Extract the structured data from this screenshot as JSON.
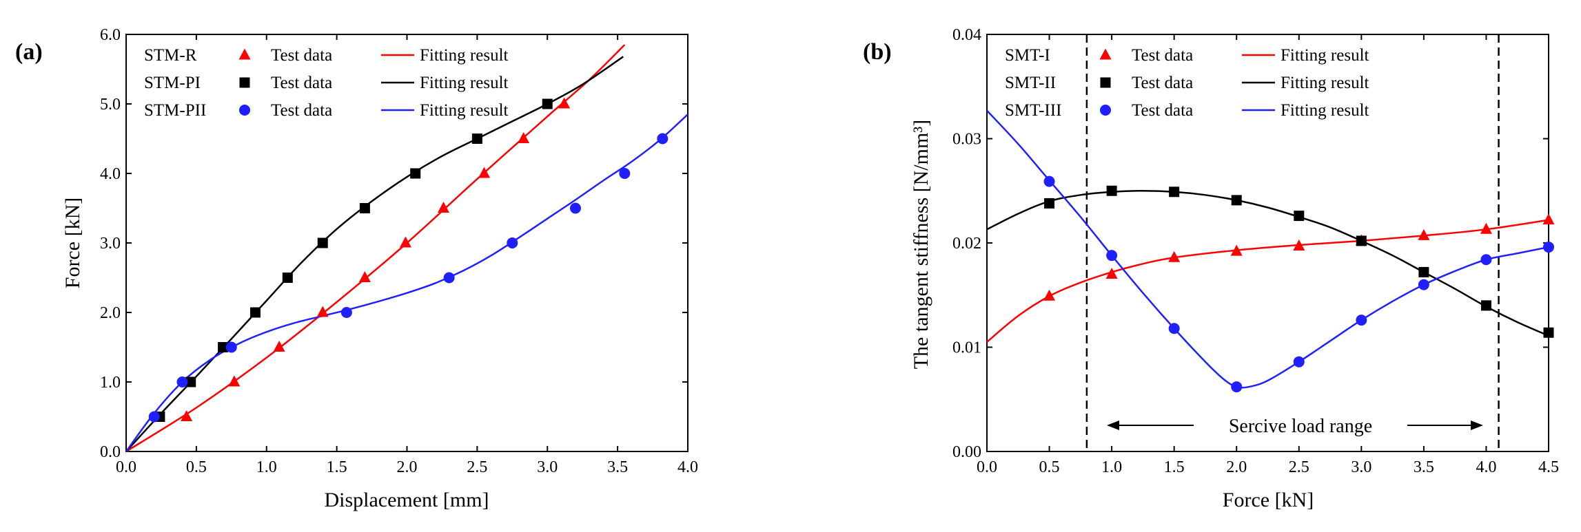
{
  "panels": [
    {
      "panel_label": "(a)",
      "xlabel": "Displacement [mm]",
      "ylabel": "Force [kN]",
      "xlim": [
        0,
        4.0
      ],
      "ylim": [
        0,
        6.0
      ],
      "xticks": [
        0.0,
        0.5,
        1.0,
        1.5,
        2.0,
        2.5,
        3.0,
        3.5,
        4.0
      ],
      "yticks": [
        0.0,
        1.0,
        2.0,
        3.0,
        4.0,
        5.0,
        6.0
      ],
      "tick_decimals": 1,
      "legend": [
        {
          "name": "STM-R",
          "marker_label": "Test data",
          "line_label": "Fitting result"
        },
        {
          "name": "STM-PI",
          "marker_label": "Test data",
          "line_label": "Fitting result"
        },
        {
          "name": "STM-PII",
          "marker_label": "Test data",
          "line_label": "Fitting result"
        }
      ],
      "legend_position": "top-left",
      "vlines": [],
      "range_label": ""
    },
    {
      "panel_label": "(b)",
      "xlabel": "Force [kN]",
      "ylabel": "The  tangent stiffness [N/mm³]",
      "xlim": [
        0,
        4.5
      ],
      "ylim": [
        0,
        0.04
      ],
      "xticks": [
        0.0,
        0.5,
        1.0,
        1.5,
        2.0,
        2.5,
        3.0,
        3.5,
        4.0,
        4.5
      ],
      "yticks": [
        0.0,
        0.01,
        0.02,
        0.03,
        0.04
      ],
      "tick_decimals_x": 1,
      "tick_decimals_y": 2,
      "legend": [
        {
          "name": "SMT-I",
          "marker_label": "Test data",
          "line_label": "Fitting result"
        },
        {
          "name": "SMT-II",
          "marker_label": "Test data",
          "line_label": "Fitting result"
        },
        {
          "name": "SMT-III",
          "marker_label": "Test data",
          "line_label": "Fitting result"
        }
      ],
      "legend_position": "top-left",
      "vlines": [
        0.8,
        4.1
      ],
      "range_label": "Sercive load range"
    }
  ],
  "colors": {
    "red": "#ff0000",
    "black": "#000000",
    "blue": "#1f1fff",
    "axis": "#000000"
  },
  "chart_data": [
    {
      "type": "line",
      "title": "",
      "xlabel": "Displacement [mm]",
      "ylabel": "Force [kN]",
      "xlim": [
        0,
        4.0
      ],
      "ylim": [
        0,
        6.0
      ],
      "grid": false,
      "legend_position": "top-left",
      "series": [
        {
          "name": "STM-R",
          "marker": "triangle",
          "color": "#ff0000",
          "test_x": [
            0.43,
            0.77,
            1.09,
            1.4,
            1.7,
            1.99,
            2.26,
            2.55,
            2.83,
            3.12
          ],
          "test_y": [
            0.5,
            1.0,
            1.5,
            2.0,
            2.5,
            3.0,
            3.5,
            4.0,
            4.5,
            5.0
          ],
          "fit_x": [
            0.0,
            0.5,
            1.0,
            1.5,
            2.0,
            2.5,
            3.0,
            3.3,
            3.55
          ],
          "fit_y": [
            0.0,
            0.63,
            1.35,
            2.15,
            3.0,
            3.92,
            4.82,
            5.35,
            5.85
          ]
        },
        {
          "name": "STM-PI",
          "marker": "square",
          "color": "#000000",
          "test_x": [
            0.24,
            0.46,
            0.69,
            0.92,
            1.15,
            1.4,
            1.7,
            2.06,
            2.5,
            3.0
          ],
          "test_y": [
            0.5,
            1.0,
            1.5,
            2.0,
            2.5,
            3.0,
            3.5,
            4.0,
            4.5,
            5.0
          ],
          "fit_x": [
            0.0,
            0.25,
            0.5,
            0.75,
            1.0,
            1.25,
            1.5,
            1.75,
            2.0,
            2.25,
            2.5,
            2.75,
            3.0,
            3.25,
            3.54
          ],
          "fit_y": [
            0.0,
            0.55,
            1.08,
            1.62,
            2.17,
            2.72,
            3.2,
            3.6,
            3.95,
            4.25,
            4.5,
            4.75,
            5.0,
            5.28,
            5.68
          ]
        },
        {
          "name": "STM-PII",
          "marker": "circle",
          "color": "#1f1fff",
          "test_x": [
            0.2,
            0.4,
            0.75,
            1.57,
            2.3,
            2.75,
            3.2,
            3.55,
            3.82
          ],
          "test_y": [
            0.5,
            1.0,
            1.5,
            2.0,
            2.5,
            3.0,
            3.5,
            4.0,
            4.5
          ],
          "fit_x": [
            0.0,
            0.2,
            0.4,
            0.6,
            0.8,
            1.0,
            1.2,
            1.4,
            1.6,
            1.8,
            2.0,
            2.2,
            2.4,
            2.6,
            2.8,
            3.0,
            3.2,
            3.4,
            3.6,
            3.8,
            4.0
          ],
          "fit_y": [
            0.0,
            0.55,
            1.0,
            1.32,
            1.55,
            1.72,
            1.85,
            1.95,
            2.05,
            2.16,
            2.28,
            2.42,
            2.6,
            2.82,
            3.08,
            3.35,
            3.62,
            3.9,
            4.17,
            4.48,
            4.85
          ]
        }
      ]
    },
    {
      "type": "line",
      "title": "",
      "xlabel": "Force [kN]",
      "ylabel": "The  tangent stiffness [N/mm³]",
      "xlim": [
        0,
        4.5
      ],
      "ylim": [
        0,
        0.04
      ],
      "grid": false,
      "legend_position": "top-left",
      "annotations": [
        "Sercive load range"
      ],
      "series": [
        {
          "name": "SMT-I",
          "marker": "triangle",
          "color": "#ff0000",
          "test_x": [
            0.5,
            1.0,
            1.5,
            2.0,
            2.5,
            3.0,
            3.5,
            4.0,
            4.5
          ],
          "test_y": [
            0.0149,
            0.017,
            0.0186,
            0.0192,
            0.0197,
            0.0202,
            0.0207,
            0.0213,
            0.0222
          ],
          "fit_x": [
            0.0,
            0.25,
            0.5,
            0.75,
            1.0,
            1.25,
            1.5,
            2.0,
            2.5,
            3.0,
            3.5,
            4.0,
            4.5
          ],
          "fit_y": [
            0.0105,
            0.013,
            0.0149,
            0.0162,
            0.0172,
            0.018,
            0.0186,
            0.0193,
            0.0198,
            0.0202,
            0.0207,
            0.0213,
            0.0222
          ]
        },
        {
          "name": "SMT-II",
          "marker": "square",
          "color": "#000000",
          "test_x": [
            0.5,
            1.0,
            1.5,
            2.0,
            2.5,
            3.0,
            3.5,
            4.0,
            4.5
          ],
          "test_y": [
            0.0238,
            0.025,
            0.0249,
            0.0241,
            0.0226,
            0.0202,
            0.0172,
            0.014,
            0.0114
          ],
          "fit_x": [
            0.0,
            0.25,
            0.5,
            0.75,
            1.0,
            1.25,
            1.5,
            1.75,
            2.0,
            2.25,
            2.5,
            2.75,
            3.0,
            3.25,
            3.5,
            3.75,
            4.0,
            4.25,
            4.5
          ],
          "fit_y": [
            0.0213,
            0.0228,
            0.024,
            0.0246,
            0.0249,
            0.025,
            0.0249,
            0.0246,
            0.0241,
            0.0234,
            0.0225,
            0.0215,
            0.0202,
            0.0188,
            0.0172,
            0.0156,
            0.0139,
            0.0124,
            0.0111
          ]
        },
        {
          "name": "SMT-III",
          "marker": "circle",
          "color": "#1f1fff",
          "test_x": [
            0.5,
            1.0,
            1.5,
            2.0,
            2.5,
            3.0,
            3.5,
            4.0,
            4.5
          ],
          "test_y": [
            0.0259,
            0.0188,
            0.0118,
            0.0062,
            0.0086,
            0.0126,
            0.016,
            0.0184,
            0.0196
          ],
          "fit_x": [
            0.0,
            0.25,
            0.5,
            0.75,
            1.0,
            1.25,
            1.5,
            1.75,
            1.9,
            2.0,
            2.1,
            2.25,
            2.5,
            2.75,
            3.0,
            3.25,
            3.5,
            3.75,
            4.0,
            4.25,
            4.5
          ],
          "fit_y": [
            0.0327,
            0.0295,
            0.026,
            0.0225,
            0.0188,
            0.0152,
            0.0118,
            0.0086,
            0.0069,
            0.0062,
            0.0062,
            0.0068,
            0.0086,
            0.0106,
            0.0126,
            0.0144,
            0.016,
            0.0173,
            0.0184,
            0.019,
            0.0196
          ]
        }
      ]
    }
  ]
}
